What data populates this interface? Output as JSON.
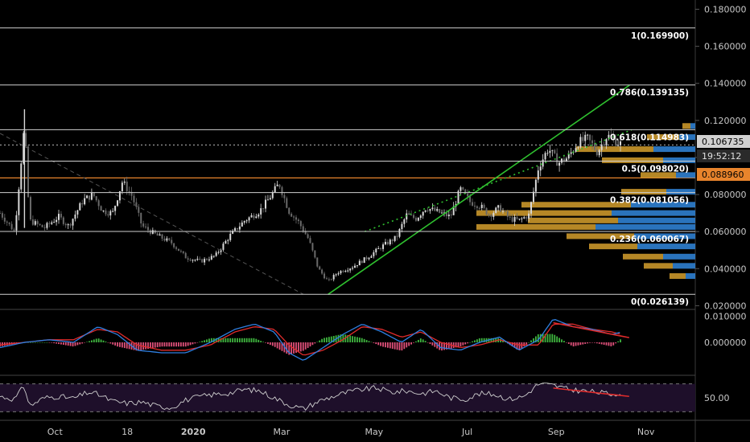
{
  "chart_data": [
    {
      "type": "candlestick",
      "panel": "price",
      "ylim": [
        0.018,
        0.185
      ],
      "y_ticks": [
        "0.180000",
        "0.160000",
        "0.140000",
        "0.120000",
        "0.100000",
        "0.080000",
        "0.060000",
        "0.040000",
        "0.020000"
      ],
      "y_tick_values": [
        0.18,
        0.16,
        0.14,
        0.12,
        0.1,
        0.08,
        0.06,
        0.04,
        0.02
      ],
      "x_labels": [
        "Oct",
        "18",
        "2020",
        "Mar",
        "May",
        "Jul",
        "Sep",
        "Nov"
      ],
      "fib_levels": [
        {
          "label": "1(0.169900)",
          "value": 0.1699
        },
        {
          "label": "0.786(0.139135)",
          "value": 0.139135
        },
        {
          "label": "0.618(0.114983)",
          "value": 0.114983
        },
        {
          "label": "0.5(0.098020)",
          "value": 0.09802
        },
        {
          "label": "0.382(0.081056)",
          "value": 0.081056
        },
        {
          "label": "0.236(0.060067)",
          "value": 0.060067
        },
        {
          "label": "0(0.026139)",
          "value": 0.026139
        }
      ],
      "current_price": {
        "label": "0.106735",
        "value": 0.106735,
        "countdown": "19:52:12"
      },
      "orange_level": {
        "label": "0.088960",
        "value": 0.08896,
        "color": "#e8842c"
      },
      "price_path": [
        [
          0,
          0.07
        ],
        [
          0.03,
          0.06
        ],
        [
          0.05,
          0.118
        ],
        [
          0.06,
          0.066
        ],
        [
          0.09,
          0.062
        ],
        [
          0.12,
          0.068
        ],
        [
          0.14,
          0.063
        ],
        [
          0.17,
          0.077
        ],
        [
          0.19,
          0.08
        ],
        [
          0.21,
          0.071
        ],
        [
          0.23,
          0.07
        ],
        [
          0.25,
          0.087
        ],
        [
          0.27,
          0.079
        ],
        [
          0.29,
          0.063
        ],
        [
          0.32,
          0.058
        ],
        [
          0.35,
          0.054
        ],
        [
          0.38,
          0.046
        ],
        [
          0.41,
          0.044
        ],
        [
          0.44,
          0.047
        ],
        [
          0.47,
          0.058
        ],
        [
          0.5,
          0.066
        ],
        [
          0.53,
          0.071
        ],
        [
          0.55,
          0.078
        ],
        [
          0.57,
          0.086
        ],
        [
          0.59,
          0.071
        ],
        [
          0.61,
          0.065
        ],
        [
          0.63,
          0.056
        ],
        [
          0.65,
          0.04
        ],
        [
          0.67,
          0.033
        ],
        [
          0.69,
          0.038
        ],
        [
          0.72,
          0.041
        ],
        [
          0.75,
          0.046
        ],
        [
          0.78,
          0.052
        ],
        [
          0.81,
          0.057
        ],
        [
          0.83,
          0.069
        ],
        [
          0.85,
          0.067
        ],
        [
          0.87,
          0.073
        ],
        [
          0.9,
          0.07
        ],
        [
          0.92,
          0.068
        ],
        [
          0.94,
          0.083
        ],
        [
          0.96,
          0.076
        ],
        [
          0.98,
          0.074
        ],
        [
          1.0,
          0.069
        ],
        [
          1.02,
          0.073
        ],
        [
          1.04,
          0.067
        ],
        [
          1.06,
          0.066
        ],
        [
          1.08,
          0.069
        ],
        [
          1.1,
          0.095
        ],
        [
          1.12,
          0.105
        ],
        [
          1.14,
          0.097
        ],
        [
          1.16,
          0.1
        ],
        [
          1.18,
          0.108
        ],
        [
          1.2,
          0.11
        ],
        [
          1.22,
          0.103
        ],
        [
          1.24,
          0.112
        ],
        [
          1.25,
          0.11
        ],
        [
          1.27,
          0.107
        ]
      ],
      "trendlines": [
        {
          "color": "#2fc12f",
          "style": "solid",
          "from": [
            0.0261,
            0.67
          ],
          "to": [
            0.1391,
            1.286
          ]
        },
        {
          "color": "#2fc12f",
          "style": "dotted",
          "from": [
            0.06,
            0.745
          ],
          "to": [
            0.1149,
            1.29
          ]
        },
        {
          "color": "#555555",
          "style": "dashed",
          "from": [
            0.113,
            0.0
          ],
          "to": [
            0.0261,
            0.62
          ]
        }
      ],
      "volume_profile": [
        {
          "price": 0.0905,
          "up": 0.22,
          "down": 0.12
        },
        {
          "price": 0.0985,
          "up": 0.38,
          "down": 0.2
        },
        {
          "price": 0.1045,
          "up": 0.48,
          "down": 0.26
        },
        {
          "price": 0.111,
          "up": 0.2,
          "down": 0.1
        },
        {
          "price": 0.117,
          "up": 0.05,
          "down": 0.03
        },
        {
          "price": 0.0815,
          "up": 0.28,
          "down": 0.18
        },
        {
          "price": 0.0745,
          "up": 0.68,
          "down": 0.4
        },
        {
          "price": 0.07,
          "up": 0.84,
          "down": 0.52
        },
        {
          "price": 0.066,
          "up": 0.56,
          "down": 0.48
        },
        {
          "price": 0.0625,
          "up": 0.74,
          "down": 0.62
        },
        {
          "price": 0.0575,
          "up": 0.42,
          "down": 0.38
        },
        {
          "price": 0.052,
          "up": 0.3,
          "down": 0.36
        },
        {
          "price": 0.0465,
          "up": 0.25,
          "down": 0.2
        },
        {
          "price": 0.0415,
          "up": 0.18,
          "down": 0.14
        },
        {
          "price": 0.036,
          "up": 0.1,
          "down": 0.06
        }
      ]
    },
    {
      "type": "line",
      "panel": "macd",
      "y_ticks": [
        "0.010000",
        "0.000000"
      ],
      "y_tick_values": [
        0.01,
        0.0
      ],
      "ylim": [
        -0.012,
        0.012
      ],
      "macd_path": [
        [
          0,
          -0.002
        ],
        [
          0.05,
          0.0
        ],
        [
          0.1,
          0.001
        ],
        [
          0.15,
          0.0
        ],
        [
          0.2,
          0.006
        ],
        [
          0.24,
          0.003
        ],
        [
          0.28,
          -0.003
        ],
        [
          0.33,
          -0.004
        ],
        [
          0.38,
          -0.004
        ],
        [
          0.43,
          0.0
        ],
        [
          0.48,
          0.005
        ],
        [
          0.52,
          0.007
        ],
        [
          0.56,
          0.004
        ],
        [
          0.59,
          -0.004
        ],
        [
          0.62,
          -0.007
        ],
        [
          0.66,
          -0.002
        ],
        [
          0.7,
          0.003
        ],
        [
          0.74,
          0.007
        ],
        [
          0.78,
          0.004
        ],
        [
          0.82,
          0.0
        ],
        [
          0.86,
          0.005
        ],
        [
          0.9,
          -0.002
        ],
        [
          0.94,
          -0.003
        ],
        [
          0.98,
          0.0
        ],
        [
          1.02,
          0.002
        ],
        [
          1.06,
          -0.003
        ],
        [
          1.1,
          0.001
        ],
        [
          1.13,
          0.009
        ],
        [
          1.17,
          0.006
        ],
        [
          1.21,
          0.005
        ],
        [
          1.25,
          0.003
        ],
        [
          1.27,
          0.004
        ]
      ],
      "signal_path": [
        [
          0,
          -0.001
        ],
        [
          0.05,
          0.0
        ],
        [
          0.1,
          0.001
        ],
        [
          0.15,
          0.001
        ],
        [
          0.2,
          0.005
        ],
        [
          0.24,
          0.004
        ],
        [
          0.28,
          -0.001
        ],
        [
          0.33,
          -0.003
        ],
        [
          0.38,
          -0.003
        ],
        [
          0.43,
          -0.001
        ],
        [
          0.48,
          0.004
        ],
        [
          0.52,
          0.006
        ],
        [
          0.56,
          0.005
        ],
        [
          0.59,
          -0.001
        ],
        [
          0.62,
          -0.005
        ],
        [
          0.66,
          -0.003
        ],
        [
          0.7,
          0.001
        ],
        [
          0.74,
          0.006
        ],
        [
          0.78,
          0.005
        ],
        [
          0.82,
          0.002
        ],
        [
          0.86,
          0.004
        ],
        [
          0.9,
          0.0
        ],
        [
          0.94,
          -0.002
        ],
        [
          0.98,
          -0.001
        ],
        [
          1.02,
          0.001
        ],
        [
          1.06,
          -0.001
        ],
        [
          1.1,
          -0.001
        ],
        [
          1.13,
          0.007
        ],
        [
          1.17,
          0.007
        ],
        [
          1.21,
          0.005
        ],
        [
          1.25,
          0.004
        ],
        [
          1.27,
          0.003
        ]
      ],
      "divergence_line": {
        "color": "#e02b2b",
        "from": [
          1.13,
          0.0075
        ],
        "to": [
          1.285,
          0.0018
        ]
      }
    },
    {
      "type": "line",
      "panel": "rsi",
      "y_ticks": [
        "50.00"
      ],
      "y_tick_values": [
        50
      ],
      "ylim": [
        20,
        80
      ],
      "bands": [
        70,
        30
      ],
      "rsi_path": [
        [
          0,
          52
        ],
        [
          0.03,
          48
        ],
        [
          0.05,
          68
        ],
        [
          0.06,
          38
        ],
        [
          0.09,
          50
        ],
        [
          0.12,
          52
        ],
        [
          0.15,
          49
        ],
        [
          0.18,
          58
        ],
        [
          0.2,
          55
        ],
        [
          0.23,
          45
        ],
        [
          0.26,
          42
        ],
        [
          0.29,
          44
        ],
        [
          0.32,
          38
        ],
        [
          0.35,
          36
        ],
        [
          0.38,
          47
        ],
        [
          0.41,
          52
        ],
        [
          0.44,
          55
        ],
        [
          0.47,
          57
        ],
        [
          0.5,
          62
        ],
        [
          0.53,
          60
        ],
        [
          0.56,
          50
        ],
        [
          0.59,
          40
        ],
        [
          0.62,
          34
        ],
        [
          0.65,
          45
        ],
        [
          0.68,
          52
        ],
        [
          0.71,
          58
        ],
        [
          0.74,
          62
        ],
        [
          0.77,
          64
        ],
        [
          0.8,
          58
        ],
        [
          0.83,
          60
        ],
        [
          0.86,
          56
        ],
        [
          0.89,
          60
        ],
        [
          0.92,
          50
        ],
        [
          0.95,
          48
        ],
        [
          0.98,
          56
        ],
        [
          1.01,
          55
        ],
        [
          1.04,
          48
        ],
        [
          1.07,
          52
        ],
        [
          1.1,
          70
        ],
        [
          1.13,
          68
        ],
        [
          1.16,
          62
        ],
        [
          1.19,
          60
        ],
        [
          1.22,
          58
        ],
        [
          1.25,
          55
        ],
        [
          1.27,
          58
        ]
      ],
      "divergence_line": {
        "color": "#e02b2b",
        "from": [
          1.13,
          64
        ],
        "to": [
          1.285,
          52
        ]
      }
    }
  ],
  "palette": {
    "background": "#000000",
    "candle_up": "#d9d9d9",
    "candle_down": "#6a6a6a",
    "fib_line": "#d0d0d0",
    "macd_line": "#2f7fe0",
    "signal_line": "#e02b2b",
    "hist_up": "#3fb63f",
    "hist_down": "#e0507a",
    "rsi_line": "#cfcfcf",
    "rsi_band": "#1e0f2a",
    "vp_up": "#c9962a",
    "vp_down": "#2f7fd0",
    "label_bg": "#2a2a2a"
  }
}
